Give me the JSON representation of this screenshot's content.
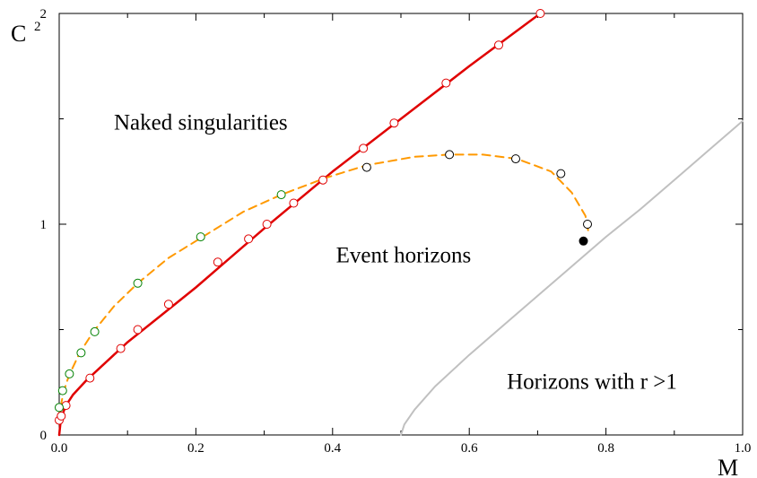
{
  "chart_data": {
    "type": "line",
    "xlabel": "M",
    "ylabel": "C",
    "ylabel_exponent": "2",
    "xlim": [
      0,
      1.0
    ],
    "ylim": [
      0,
      2
    ],
    "x_ticks": [
      0.0,
      0.2,
      0.4,
      0.6,
      0.8,
      1.0
    ],
    "x_tick_labels": [
      "0.0",
      "0.2",
      "0.4",
      "0.6",
      "0.8",
      "1.0"
    ],
    "y_ticks": [
      0,
      1,
      2
    ],
    "y_tick_labels": [
      "0",
      "1",
      "2"
    ],
    "grid": false,
    "annotations": [
      {
        "text": "Naked singularities",
        "x": 0.08,
        "y": 1.45
      },
      {
        "text": "Event horizons",
        "x": 0.405,
        "y": 0.82
      },
      {
        "text": "Horizons with r >1",
        "x": 0.655,
        "y": 0.22
      }
    ],
    "series": [
      {
        "kind": "line",
        "color": "#e00000",
        "style": "solid",
        "x": [
          0.0,
          0.002,
          0.005,
          0.01,
          0.02,
          0.04,
          0.07,
          0.1,
          0.15,
          0.2,
          0.3,
          0.4,
          0.5,
          0.6,
          0.704
        ],
        "y": [
          0.0,
          0.06,
          0.1,
          0.14,
          0.19,
          0.26,
          0.35,
          0.44,
          0.57,
          0.7,
          0.98,
          1.25,
          1.5,
          1.75,
          2.0
        ]
      },
      {
        "kind": "markers",
        "color": "#e00000",
        "marker": "open-circle",
        "x": [
          0.0,
          0.003,
          0.01,
          0.045,
          0.09,
          0.115,
          0.16,
          0.232,
          0.277,
          0.304,
          0.343,
          0.386,
          0.445,
          0.49,
          0.566,
          0.643,
          0.704
        ],
        "y": [
          0.07,
          0.09,
          0.14,
          0.27,
          0.41,
          0.5,
          0.62,
          0.82,
          0.93,
          1.0,
          1.1,
          1.21,
          1.36,
          1.48,
          1.67,
          1.85,
          2.0
        ]
      },
      {
        "kind": "line",
        "color": "#ff9900",
        "style": "dashed",
        "x": [
          0.0,
          0.002,
          0.006,
          0.014,
          0.03,
          0.05,
          0.08,
          0.115,
          0.16,
          0.21,
          0.27,
          0.325,
          0.39,
          0.45,
          0.52,
          0.57,
          0.62,
          0.67,
          0.72,
          0.75,
          0.77,
          0.775
        ],
        "y": [
          0.07,
          0.13,
          0.2,
          0.28,
          0.39,
          0.49,
          0.61,
          0.72,
          0.84,
          0.94,
          1.06,
          1.14,
          1.22,
          1.28,
          1.32,
          1.33,
          1.33,
          1.31,
          1.25,
          1.15,
          1.04,
          0.95
        ]
      },
      {
        "kind": "markers",
        "color": "#008000",
        "marker": "open-circle",
        "x": [
          0.0,
          0.005,
          0.015,
          0.032,
          0.052,
          0.115,
          0.207,
          0.325
        ],
        "y": [
          0.13,
          0.21,
          0.29,
          0.39,
          0.49,
          0.72,
          0.94,
          1.14
        ]
      },
      {
        "kind": "markers",
        "color": "#000000",
        "marker": "open-circle",
        "x": [
          0.45,
          0.571,
          0.668,
          0.734,
          0.773
        ],
        "y": [
          1.27,
          1.33,
          1.31,
          1.24,
          1.0
        ]
      },
      {
        "kind": "markers",
        "color": "#000000",
        "marker": "filled-circle",
        "x": [
          0.767
        ],
        "y": [
          0.92
        ]
      },
      {
        "kind": "line",
        "color": "#c0c0c0",
        "style": "solid",
        "x": [
          0.5,
          0.505,
          0.52,
          0.55,
          0.6,
          0.65,
          0.7,
          0.75,
          0.8,
          0.85,
          0.9,
          0.95,
          1.0
        ],
        "y": [
          0.0,
          0.05,
          0.12,
          0.23,
          0.38,
          0.52,
          0.66,
          0.8,
          0.94,
          1.07,
          1.21,
          1.35,
          1.49
        ]
      }
    ]
  }
}
